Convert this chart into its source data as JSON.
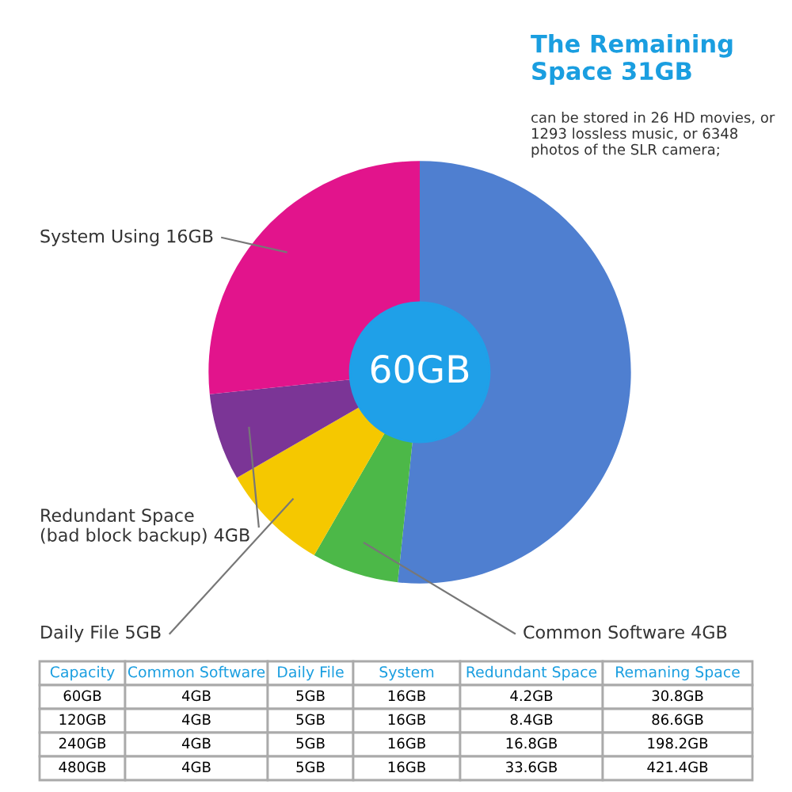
{
  "chart_data": [
    {
      "type": "donut",
      "categories": [
        "The Remaining\nSpace 31GB",
        "Common Software 4GB",
        "Daily File 5GB",
        "Redundant Space\n(bad block backup) 4GB",
        "System Using 16GB"
      ],
      "values": [
        31,
        4,
        5,
        4,
        16
      ],
      "colors": [
        "#4f7fd0",
        "#4cb848",
        "#f5c800",
        "#7b3596",
        "#e2148c"
      ],
      "annotations": [
        "can be stored in 26 HD movies, or\n1293 lossless music, or 6348\nphotos of the SLR camera;",
        "60GB"
      ]
    },
    {
      "type": "other",
      "categories": [
        "Capacity",
        "Common Software",
        "Daily File",
        "System",
        "Redundant Space",
        "Remaning Space"
      ],
      "cell_labels": [
        [
          "60GB",
          "4GB",
          "5GB",
          "16GB",
          "4.2GB",
          "30.8GB"
        ],
        [
          "120GB",
          "4GB",
          "5GB",
          "16GB",
          "8.4GB",
          "86.6GB"
        ],
        [
          "240GB",
          "4GB",
          "5GB",
          "16GB",
          "16.8GB",
          "198.2GB"
        ],
        [
          "480GB",
          "4GB",
          "5GB",
          "16GB",
          "33.6GB",
          "421.4GB"
        ]
      ]
    }
  ]
}
